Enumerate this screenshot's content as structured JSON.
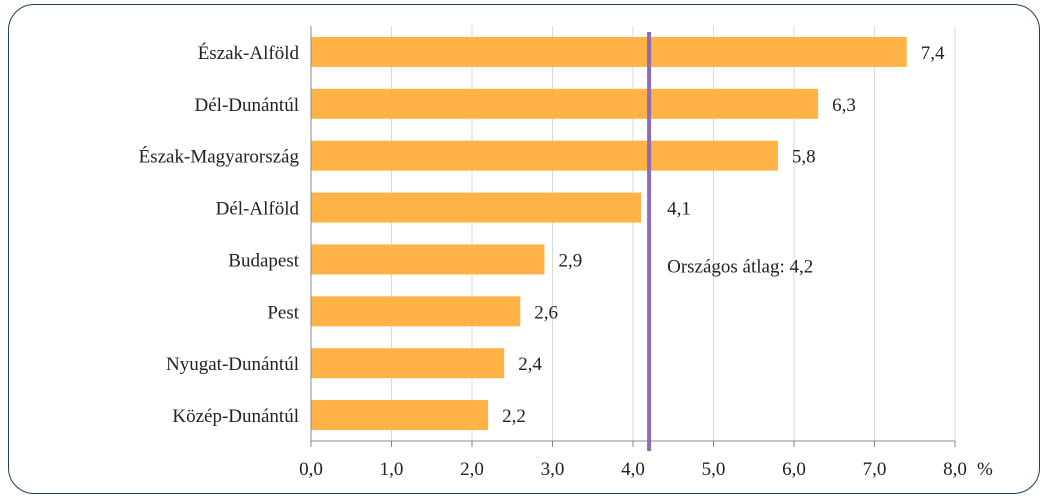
{
  "chart_data": {
    "type": "bar",
    "orientation": "horizontal",
    "categories": [
      "Észak-Alföld",
      "Dél-Dunántúl",
      "Észak-Magyarország",
      "Dél-Alföld",
      "Budapest",
      "Pest",
      "Nyugat-Dunántúl",
      "Közép-Dunántúl"
    ],
    "values": [
      7.4,
      6.3,
      5.8,
      4.1,
      2.9,
      2.6,
      2.4,
      2.2
    ],
    "value_labels": [
      "7,4",
      "6,3",
      "5,8",
      "4,1",
      "2,9",
      "2,6",
      "2,4",
      "2,2"
    ],
    "xlim": [
      0,
      8
    ],
    "x_ticks": [
      "0,0",
      "1,0",
      "2,0",
      "3,0",
      "4,0",
      "5,0",
      "6,0",
      "7,0",
      "8,0"
    ],
    "x_unit": "%",
    "grid": "vertical",
    "reference_line": {
      "value": 4.2,
      "label": "Országos átlag: 4,2"
    },
    "colors": {
      "bar": "#ffb347",
      "reference_line": "#8e6bb5",
      "grid": "#d9d9d9",
      "frame": "#1f3d63"
    }
  }
}
